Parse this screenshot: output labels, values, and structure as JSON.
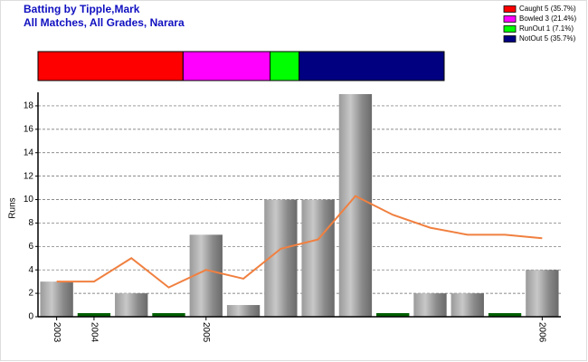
{
  "chart_data": [
    {
      "type": "stacked-bar",
      "series": [
        {
          "name": "Caught 5 (35.7%)",
          "color": "#ff0000",
          "values": [
            5
          ]
        },
        {
          "name": "Bowled 3 (21.4%)",
          "color": "#ff00ff",
          "values": [
            3
          ]
        },
        {
          "name": "RunOut 1 (7.1%)",
          "color": "#00ff00",
          "values": [
            1
          ]
        },
        {
          "name": "NotOut 5 (35.7%)",
          "color": "#000080",
          "values": [
            5
          ]
        }
      ]
    },
    {
      "type": "bar",
      "title": "Batting by Tipple,Mark",
      "subtitle": "All Matches, All Grades, Narara",
      "y_label": "Runs",
      "categories": [
        "2003",
        "2004",
        null,
        null,
        "2005",
        null,
        null,
        null,
        null,
        null,
        null,
        null,
        null,
        "2006"
      ],
      "series": [
        {
          "type": "bar",
          "values": [
            3,
            0,
            2,
            0,
            7,
            1,
            10,
            10,
            19,
            0,
            2,
            2,
            0,
            4
          ]
        },
        {
          "type": "line",
          "color": "#f08040",
          "values": [
            3,
            3,
            5,
            2.5,
            4,
            3.25,
            5.8,
            6.6,
            10.3,
            8.7,
            7.6,
            7,
            7,
            6.7
          ]
        }
      ],
      "zero_color": "#006000",
      "ylim": [
        0,
        19
      ],
      "yticks": [
        0,
        2,
        4,
        6,
        8,
        10,
        12,
        14,
        16,
        18
      ],
      "grid": true
    }
  ]
}
